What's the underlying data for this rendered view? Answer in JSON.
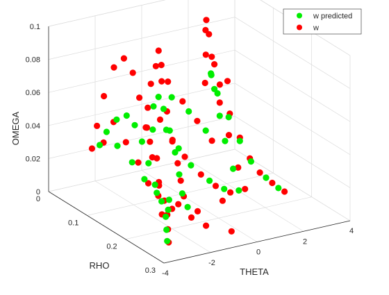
{
  "chart_data": {
    "type": "scatter",
    "title": "",
    "xlabel": "THETA",
    "ylabel": "RHO",
    "zlabel": "OMEGA",
    "x_ticks": [
      "-4",
      "-2",
      "0",
      "2",
      "4"
    ],
    "y_ticks": [
      "0",
      "0.1",
      "0.2",
      "0.3"
    ],
    "z_ticks": [
      "0",
      "0.02",
      "0.04",
      "0.06",
      "0.08",
      "0.1"
    ],
    "xlim": [
      -4,
      4
    ],
    "ylim": [
      0,
      0.3
    ],
    "zlim": [
      0,
      0.1
    ],
    "grid": true,
    "legend_position": "top-right",
    "series": [
      {
        "name": "w",
        "color": "#ff0000",
        "points": [
          [
            -3.3,
            0.27,
            0.006
          ],
          [
            -3.0,
            0.25,
            0.01
          ],
          [
            -2.7,
            0.23,
            0.015
          ],
          [
            -2.5,
            0.21,
            0.02
          ],
          [
            -2.4,
            0.19,
            0.028
          ],
          [
            -2.35,
            0.17,
            0.04
          ],
          [
            -2.3,
            0.15,
            0.055
          ],
          [
            -2.25,
            0.13,
            0.07
          ],
          [
            -2.2,
            0.11,
            0.082
          ],
          [
            -2.25,
            0.09,
            0.088
          ],
          [
            -2.35,
            0.07,
            0.08
          ],
          [
            -2.45,
            0.05,
            0.06
          ],
          [
            -2.5,
            0.035,
            0.04
          ],
          [
            -2.55,
            0.025,
            0.025
          ],
          [
            -2.3,
            0.04,
            0.03
          ],
          [
            -2.2,
            0.06,
            0.045
          ],
          [
            -2.0,
            0.08,
            0.035
          ],
          [
            -1.8,
            0.1,
            0.025
          ],
          [
            -1.7,
            0.12,
            0.015
          ],
          [
            -1.6,
            0.14,
            0.01
          ],
          [
            -2.0,
            0.2,
            0.012
          ],
          [
            -1.5,
            0.22,
            0.008
          ],
          [
            -1.2,
            0.24,
            0.005
          ],
          [
            -0.9,
            0.2,
            0.007
          ],
          [
            -0.6,
            0.27,
            0.004
          ],
          [
            -1.0,
            0.17,
            0.012
          ],
          [
            -0.8,
            0.15,
            0.018
          ],
          [
            -0.6,
            0.13,
            0.025
          ],
          [
            -0.5,
            0.11,
            0.035
          ],
          [
            -0.4,
            0.09,
            0.05
          ],
          [
            -0.3,
            0.07,
            0.065
          ],
          [
            -0.3,
            0.055,
            0.072
          ],
          [
            -0.35,
            0.045,
            0.06
          ],
          [
            -0.4,
            0.04,
            0.045
          ],
          [
            -0.6,
            0.05,
            0.035
          ],
          [
            -0.8,
            0.07,
            0.03
          ],
          [
            -1.0,
            0.1,
            0.025
          ],
          [
            -0.2,
            0.06,
            0.04
          ],
          [
            0.0,
            0.08,
            0.03
          ],
          [
            0.2,
            0.1,
            0.022
          ],
          [
            0.4,
            0.13,
            0.015
          ],
          [
            0.7,
            0.15,
            0.01
          ],
          [
            1.0,
            0.17,
            0.008
          ],
          [
            1.3,
            0.19,
            0.012
          ],
          [
            1.5,
            0.16,
            0.02
          ],
          [
            1.6,
            0.13,
            0.035
          ],
          [
            1.7,
            0.1,
            0.05
          ],
          [
            1.8,
            0.08,
            0.07
          ],
          [
            1.9,
            0.06,
            0.085
          ],
          [
            1.95,
            0.05,
            0.092
          ],
          [
            2.0,
            0.045,
            0.085
          ],
          [
            2.1,
            0.055,
            0.07
          ],
          [
            2.2,
            0.07,
            0.055
          ],
          [
            2.3,
            0.09,
            0.04
          ],
          [
            2.4,
            0.11,
            0.028
          ],
          [
            2.5,
            0.13,
            0.018
          ],
          [
            2.6,
            0.15,
            0.012
          ],
          [
            1.2,
            0.11,
            0.03
          ],
          [
            0.9,
            0.09,
            0.04
          ],
          [
            0.6,
            0.07,
            0.05
          ],
          [
            0.3,
            0.05,
            0.06
          ],
          [
            0.1,
            0.045,
            0.07
          ],
          [
            -0.1,
            0.05,
            0.08
          ],
          [
            2.8,
            0.17,
            0.008
          ],
          [
            3.0,
            0.19,
            0.005
          ],
          [
            1.4,
            0.08,
            0.06
          ],
          [
            1.6,
            0.07,
            0.075
          ],
          [
            -2.6,
            0.21,
            0.012
          ],
          [
            -1.9,
            0.16,
            0.02
          ],
          [
            -1.4,
            0.18,
            0.01
          ],
          [
            0.5,
            0.18,
            0.006
          ],
          [
            2.2,
            0.09,
            0.06
          ]
        ]
      },
      {
        "name": "w predicted",
        "color": "#00ee00",
        "points": [
          [
            -3.2,
            0.26,
            0.005
          ],
          [
            -2.9,
            0.24,
            0.008
          ],
          [
            -2.6,
            0.22,
            0.012
          ],
          [
            -2.45,
            0.2,
            0.018
          ],
          [
            -2.4,
            0.18,
            0.025
          ],
          [
            -2.35,
            0.16,
            0.035
          ],
          [
            -2.3,
            0.14,
            0.045
          ],
          [
            -2.28,
            0.12,
            0.052
          ],
          [
            -2.3,
            0.1,
            0.055
          ],
          [
            -2.4,
            0.08,
            0.05
          ],
          [
            -2.5,
            0.06,
            0.04
          ],
          [
            -2.55,
            0.045,
            0.03
          ],
          [
            -2.2,
            0.07,
            0.032
          ],
          [
            -1.9,
            0.09,
            0.024
          ],
          [
            -1.7,
            0.11,
            0.016
          ],
          [
            -1.5,
            0.13,
            0.01
          ],
          [
            -1.3,
            0.15,
            0.008
          ],
          [
            -1.0,
            0.18,
            0.007
          ],
          [
            -0.9,
            0.16,
            0.012
          ],
          [
            -0.7,
            0.14,
            0.02
          ],
          [
            -0.55,
            0.12,
            0.03
          ],
          [
            -0.45,
            0.1,
            0.04
          ],
          [
            -0.38,
            0.08,
            0.05
          ],
          [
            -0.35,
            0.065,
            0.055
          ],
          [
            -0.4,
            0.055,
            0.048
          ],
          [
            -0.6,
            0.065,
            0.036
          ],
          [
            -0.1,
            0.07,
            0.035
          ],
          [
            0.1,
            0.09,
            0.026
          ],
          [
            0.3,
            0.11,
            0.018
          ],
          [
            0.6,
            0.14,
            0.012
          ],
          [
            0.9,
            0.16,
            0.009
          ],
          [
            1.2,
            0.18,
            0.01
          ],
          [
            1.45,
            0.15,
            0.018
          ],
          [
            1.6,
            0.12,
            0.03
          ],
          [
            1.7,
            0.1,
            0.042
          ],
          [
            1.8,
            0.08,
            0.055
          ],
          [
            1.9,
            0.065,
            0.062
          ],
          [
            2.0,
            0.06,
            0.06
          ],
          [
            2.1,
            0.07,
            0.05
          ],
          [
            2.25,
            0.09,
            0.038
          ],
          [
            2.4,
            0.11,
            0.026
          ],
          [
            2.55,
            0.13,
            0.016
          ],
          [
            2.7,
            0.16,
            0.01
          ],
          [
            1.1,
            0.1,
            0.035
          ],
          [
            0.7,
            0.08,
            0.045
          ],
          [
            0.3,
            0.06,
            0.052
          ],
          [
            2.9,
            0.18,
            0.006
          ],
          [
            -2.0,
            0.19,
            0.01
          ]
        ]
      }
    ]
  }
}
